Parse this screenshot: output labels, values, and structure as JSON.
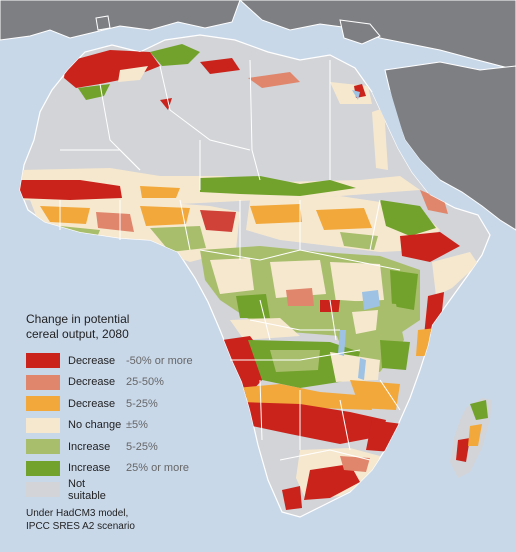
{
  "legend": {
    "title_line1": "Change in potential",
    "title_line2": "cereal output, 2080",
    "items": [
      {
        "label": "Decrease",
        "range": "-50% or more",
        "color": "#c9231c"
      },
      {
        "label": "Decrease",
        "range": "25-50%",
        "color": "#e0866c"
      },
      {
        "label": "Decrease",
        "range": "5-25%",
        "color": "#f2a83a"
      },
      {
        "label": "No change",
        "range": "±5%",
        "color": "#f6e8cf"
      },
      {
        "label": "Increase",
        "range": "5-25%",
        "color": "#a8be6c"
      },
      {
        "label": "Increase",
        "range": "25% or more",
        "color": "#72a22c"
      },
      {
        "label": "Not suitable",
        "range": "",
        "color": "#d2d4d7"
      }
    ],
    "note_line1": "Under HadCM3 model,",
    "note_line2": "IPCC SRES A2 scenario"
  },
  "colors": {
    "ocean": "#c9d8e9",
    "other_land": "#7d7f83",
    "borders": "#ffffff",
    "lakes": "#9ec2e4"
  }
}
